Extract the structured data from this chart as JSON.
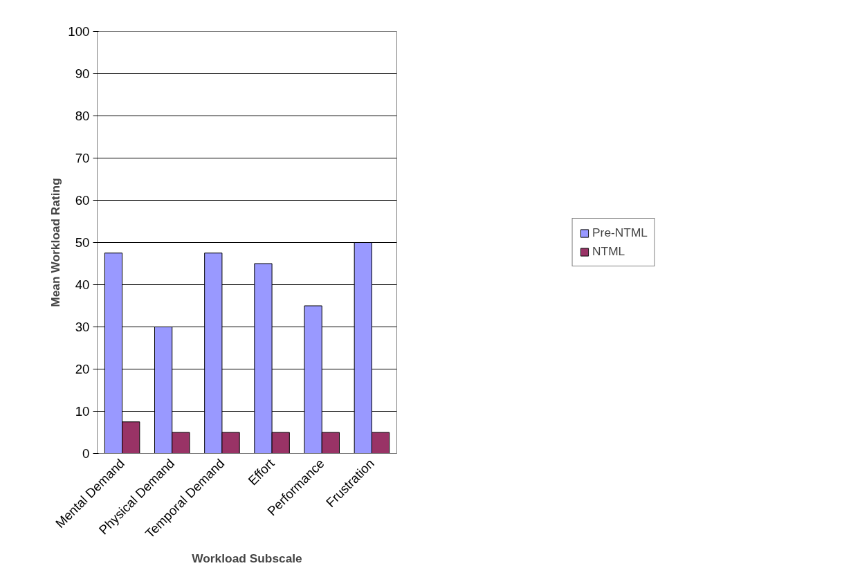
{
  "chart_data": {
    "type": "bar",
    "xlabel": "Workload Subscale",
    "ylabel": "Mean Workload Rating",
    "categories": [
      "Mental Demand",
      "Physical Demand",
      "Temporal Demand",
      "Effort",
      "Performance",
      "Frustration"
    ],
    "series": [
      {
        "name": "Pre-NTML",
        "color": "#9999ff",
        "values": [
          47.5,
          30,
          47.5,
          45,
          35,
          50
        ]
      },
      {
        "name": "NTML",
        "color": "#993366",
        "values": [
          7.5,
          5,
          5,
          5,
          5,
          5
        ]
      }
    ],
    "ylim": [
      0,
      100
    ],
    "yticks": [
      0,
      10,
      20,
      30,
      40,
      50,
      60,
      70,
      80,
      90,
      100
    ],
    "grid": "y",
    "legend": "right"
  }
}
